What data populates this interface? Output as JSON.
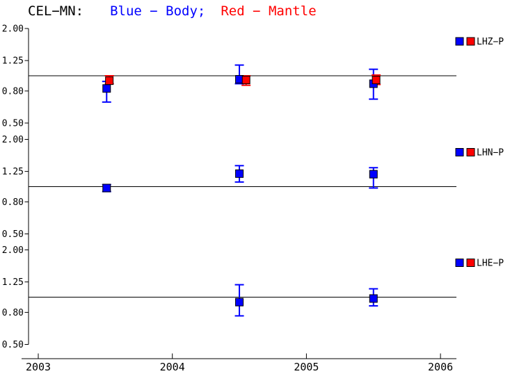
{
  "title": {
    "station": "CEL−MN:",
    "body_label": "Blue − Body;",
    "mantle_label": "Red − Mantle"
  },
  "colors": {
    "body": "#0000ff",
    "mantle": "#ff0000",
    "axis": "#000000",
    "background": "#ffffff"
  },
  "chart_data": {
    "type": "scatter",
    "yscale": "log",
    "x": {
      "ticks": [
        2003,
        2004,
        2005,
        2006
      ],
      "labels": [
        "2003",
        "2004",
        "2005",
        "2006"
      ],
      "min": 2003,
      "max": 2006.12
    },
    "panels": [
      {
        "legend_label": "LHZ−P",
        "ytick_values": [
          2.0,
          1.25,
          0.8,
          0.5
        ],
        "ytick_labels": [
          "2.00",
          "1.25",
          "0.80",
          "0.50"
        ],
        "ref_value": 1.0,
        "series": [
          {
            "name": "body",
            "points": [
              {
                "x": 2003.51,
                "v": 0.83,
                "lo": 0.68,
                "hi": 0.92
              },
              {
                "x": 2004.5,
                "v": 0.95,
                "lo": 0.89,
                "hi": 1.17
              },
              {
                "x": 2005.5,
                "v": 0.89,
                "lo": 0.71,
                "hi": 1.1
              }
            ]
          },
          {
            "name": "mantle",
            "points": [
              {
                "x": 2003.53,
                "v": 0.93,
                "lo": 0.89,
                "hi": 1.0
              },
              {
                "x": 2004.55,
                "v": 0.94,
                "lo": 0.87,
                "hi": 1.0
              },
              {
                "x": 2005.52,
                "v": 0.94,
                "lo": 0.88,
                "hi": 1.01
              }
            ]
          }
        ]
      },
      {
        "legend_label": "LHN−P",
        "ytick_values": [
          2.0,
          1.25,
          0.8,
          0.5
        ],
        "ytick_labels": [
          "2.00",
          "1.25",
          "0.80",
          "0.50"
        ],
        "ref_value": 1.0,
        "series": [
          {
            "name": "body",
            "points": [
              {
                "x": 2003.51,
                "v": 0.98,
                "lo": 0.93,
                "hi": 1.03
              },
              {
                "x": 2004.5,
                "v": 1.21,
                "lo": 1.07,
                "hi": 1.36
              },
              {
                "x": 2005.5,
                "v": 1.2,
                "lo": 0.98,
                "hi": 1.32
              }
            ]
          },
          {
            "name": "mantle",
            "points": []
          }
        ]
      },
      {
        "legend_label": "LHE−P",
        "ytick_values": [
          2.0,
          1.25,
          0.8,
          0.5
        ],
        "ytick_labels": [
          "2.00",
          "1.25",
          "0.80",
          "0.50"
        ],
        "ref_value": 1.0,
        "series": [
          {
            "name": "body",
            "points": [
              {
                "x": 2004.5,
                "v": 0.93,
                "lo": 0.76,
                "hi": 1.2
              },
              {
                "x": 2005.5,
                "v": 0.98,
                "lo": 0.88,
                "hi": 1.13
              }
            ]
          },
          {
            "name": "mantle",
            "points": []
          }
        ]
      }
    ]
  }
}
